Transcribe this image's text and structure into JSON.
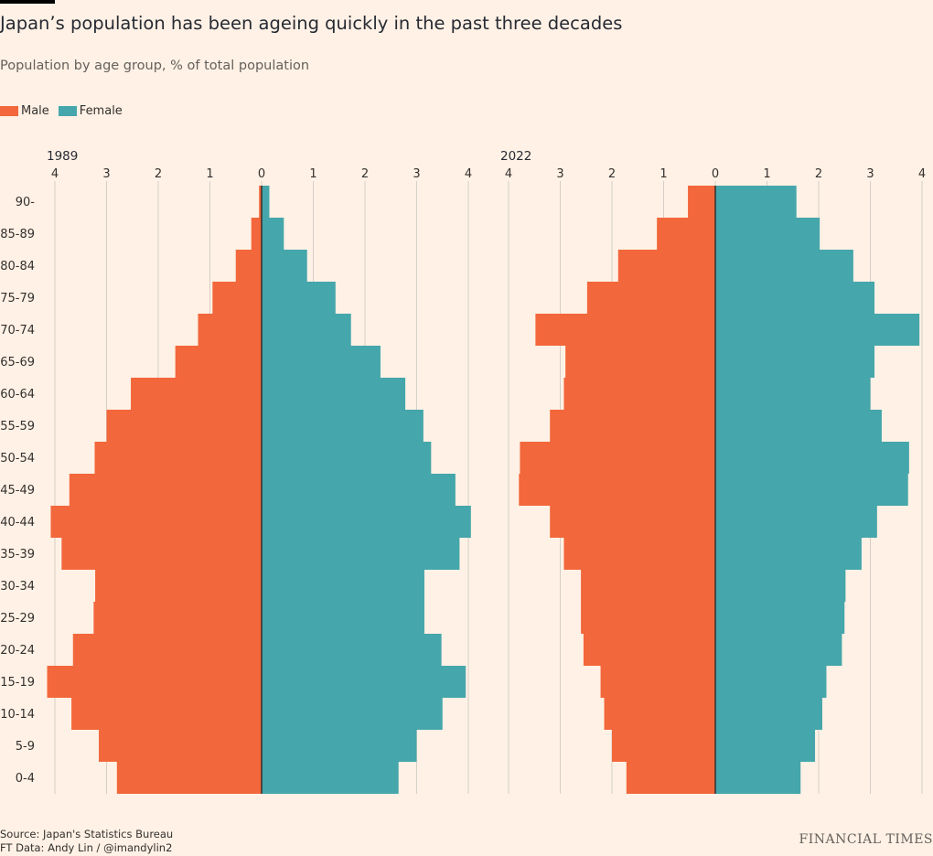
{
  "title": "Japan’s population has been ageing quickly in the past three decades",
  "subtitle": "Population by age group, % of total population",
  "legend": [
    {
      "label": "Male",
      "color": "#f2673b"
    },
    {
      "label": "Female",
      "color": "#45a6ab"
    }
  ],
  "footer": {
    "source": "Source: Japan's Statistics Bureau",
    "credit": "FT Data: Andy Lin / @imandylin2"
  },
  "brand": "FINANCIAL TIMES",
  "colors": {
    "male": "#f2673b",
    "female": "#45a6ab",
    "axis": "#33302e",
    "grid": "#d6cfc7"
  },
  "chart_data": {
    "type": "bar",
    "categories": [
      "90-",
      "85-89",
      "80-84",
      "75-79",
      "70-74",
      "65-69",
      "60-64",
      "55-59",
      "50-54",
      "45-49",
      "40-44",
      "35-39",
      "30-34",
      "25-29",
      "20-24",
      "15-19",
      "10-14",
      "5-9",
      "0-4"
    ],
    "ticks": [
      4,
      3,
      2,
      1,
      0,
      1,
      2,
      3,
      4
    ],
    "xlim": [
      -4,
      4
    ],
    "panels": [
      {
        "title": "1989",
        "series": [
          {
            "name": "Male",
            "values": [
              0.05,
              0.2,
              0.5,
              0.95,
              1.23,
              1.67,
              2.53,
              3.0,
              3.23,
              3.72,
              4.08,
              3.87,
              3.22,
              3.25,
              3.65,
              4.15,
              3.68,
              3.15,
              2.8
            ]
          },
          {
            "name": "Female",
            "values": [
              0.15,
              0.43,
              0.88,
              1.43,
              1.73,
              2.3,
              2.78,
              3.13,
              3.28,
              3.75,
              4.05,
              3.83,
              3.15,
              3.15,
              3.48,
              3.95,
              3.5,
              3.0,
              2.65
            ]
          }
        ]
      },
      {
        "title": "2022",
        "series": [
          {
            "name": "Male",
            "values": [
              0.53,
              1.13,
              1.88,
              2.48,
              3.48,
              2.9,
              2.93,
              3.2,
              3.78,
              3.8,
              3.2,
              2.93,
              2.6,
              2.6,
              2.55,
              2.22,
              2.15,
              2.0,
              1.72
            ]
          },
          {
            "name": "Female",
            "values": [
              1.57,
              2.02,
              2.67,
              3.08,
              3.95,
              3.08,
              3.0,
              3.22,
              3.75,
              3.73,
              3.13,
              2.83,
              2.52,
              2.5,
              2.45,
              2.15,
              2.07,
              1.93,
              1.65
            ]
          }
        ]
      }
    ]
  }
}
